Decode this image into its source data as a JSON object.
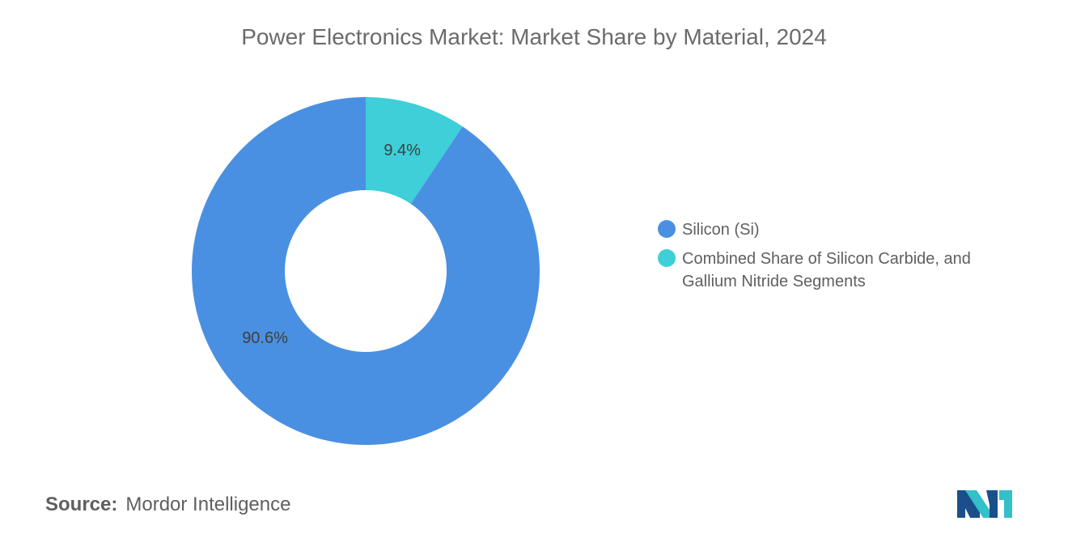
{
  "title": "Power Electronics Market: Market Share by Material, 2024",
  "chart_data": {
    "type": "pie",
    "donut": true,
    "title": "Power Electronics Market: Market Share by Material, 2024",
    "slices": [
      {
        "label": "Silicon (Si)",
        "value": 90.6,
        "display": "90.6%",
        "color": "#4a90e2"
      },
      {
        "label": "Combined Share of Silicon Carbide, and Gallium Nitride Segments",
        "value": 9.4,
        "display": "9.4%",
        "color": "#3ecfd8"
      }
    ],
    "legend_position": "right"
  },
  "legend": {
    "items": [
      {
        "label": "Silicon (Si)",
        "color": "#4a90e2"
      },
      {
        "label": "Combined Share of Silicon Carbide, and Gallium Nitride Segments",
        "color": "#3ecfd8"
      }
    ]
  },
  "source": {
    "label": "Source:",
    "text": "Mordor Intelligence"
  },
  "logo": {
    "icon": "mordor-intelligence-logo",
    "colors": [
      "#1b4f8c",
      "#33c0c8"
    ]
  }
}
